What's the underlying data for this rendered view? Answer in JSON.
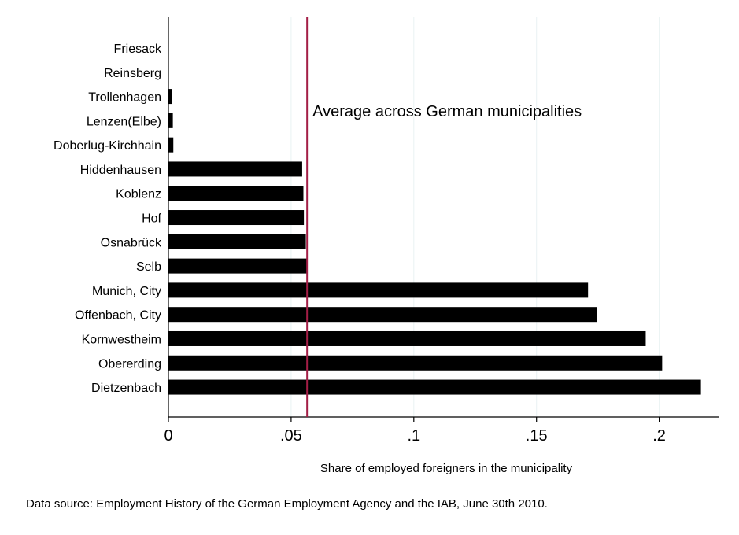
{
  "chart_data": {
    "type": "bar",
    "orientation": "horizontal",
    "title": "",
    "categories": [
      "Friesack",
      "Reinsberg",
      "Trollenhagen",
      "Lenzen(Elbe)",
      "Doberlug-Kirchhain",
      "Hiddenhausen",
      "Koblenz",
      "Hof",
      "Osnabrück",
      "Selb",
      "Munich, City",
      "Offenbach, City",
      "Kornwestheim",
      "Obererding",
      "Dietzenbach"
    ],
    "values": [
      0.0,
      0.0,
      0.0015,
      0.0018,
      0.002,
      0.0545,
      0.055,
      0.0552,
      0.056,
      0.0563,
      0.171,
      0.1745,
      0.1945,
      0.2012,
      0.217
    ],
    "xlabel": "Share of employed foreigners in the municipality",
    "ylabel": "",
    "xlim": [
      0,
      0.2245
    ],
    "x_ticks": [
      0,
      0.05,
      0.1,
      0.15,
      0.2
    ],
    "x_tick_labels": [
      "0",
      ".05",
      ".1",
      ".15",
      ".2"
    ],
    "grid": "vertical",
    "bar_color": "#000000",
    "grid_color": "#eaf2f3",
    "reference_line": {
      "value": 0.0565,
      "label": "Average across German municipalities",
      "color": "#a31e46"
    },
    "note": "Data source: Employment History of the German Employment Agency and the IAB, June 30th 2010."
  }
}
